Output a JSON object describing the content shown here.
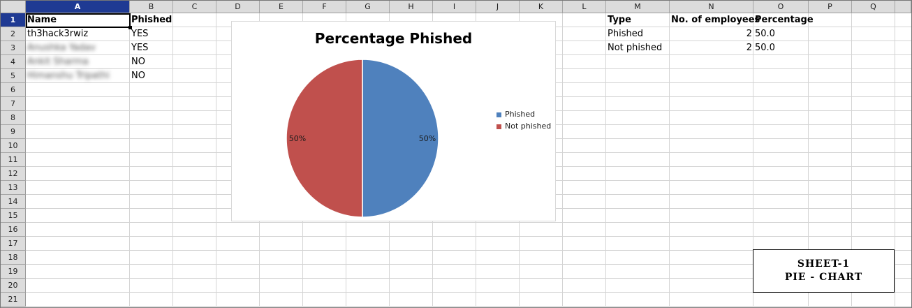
{
  "columns": [
    "A",
    "B",
    "C",
    "D",
    "E",
    "F",
    "G",
    "H",
    "I",
    "J",
    "K",
    "L",
    "M",
    "N",
    "O",
    "P",
    "Q"
  ],
  "rows": [
    "1",
    "2",
    "3",
    "4",
    "5",
    "6",
    "7",
    "8",
    "9",
    "10",
    "11",
    "12",
    "13",
    "14",
    "15",
    "16",
    "17",
    "18",
    "19",
    "20",
    "21"
  ],
  "selection": {
    "column": "A",
    "row": "1"
  },
  "names_table": {
    "headers": {
      "name": "Name",
      "phished": "Phished"
    },
    "rows": [
      {
        "name": "th3hack3rwiz",
        "phished": "YES",
        "redacted": false
      },
      {
        "name": "Anushka Yadav",
        "phished": "YES",
        "redacted": true
      },
      {
        "name": "Ankit Sharma",
        "phished": "NO",
        "redacted": true
      },
      {
        "name": "Himanshu Tripathi",
        "phished": "NO",
        "redacted": true
      }
    ]
  },
  "summary_table": {
    "headers": {
      "type": "Type",
      "employees": "No. of employees",
      "percentage": "Percentage"
    },
    "rows": [
      {
        "type": "Phished",
        "employees": "2",
        "percentage": "50.0"
      },
      {
        "type": "Not phished",
        "employees": "2",
        "percentage": "50.0"
      }
    ]
  },
  "chart_data": {
    "type": "pie",
    "title": "Percentage Phished",
    "categories": [
      "Phished",
      "Not phished"
    ],
    "values": [
      50,
      50
    ],
    "data_labels": [
      "50%",
      "50%"
    ],
    "colors": [
      "#4f81bd",
      "#c0504d"
    ],
    "legend_position": "right"
  },
  "note": {
    "line1": "SHEET-1",
    "line2": "PIE - CHART"
  }
}
